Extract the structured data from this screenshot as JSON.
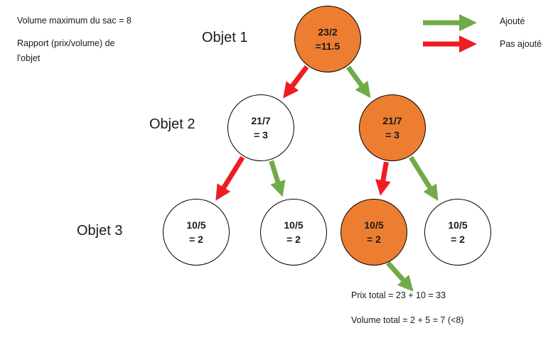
{
  "colors": {
    "added": "#71ab48",
    "not_added": "#ee1c24",
    "selected_fill": "#ed7d31",
    "unselected_fill": "#ffffff",
    "stroke": "#000000"
  },
  "info": {
    "capacity": "Volume maximum du sac = 8",
    "ratio_line1": "Rapport (prix/volume) de",
    "ratio_line2": "l'objet"
  },
  "legend": {
    "added": "Ajouté",
    "not_added": "Pas ajouté"
  },
  "levels": {
    "obj1": "Objet 1",
    "obj2": "Objet 2",
    "obj3": "Objet 3"
  },
  "nodes": {
    "root": {
      "line1": "23/2",
      "line2": "=11.5",
      "selected": true
    },
    "l2_left": {
      "line1": "21/7",
      "line2": "= 3",
      "selected": false
    },
    "l2_right": {
      "line1": "21/7",
      "line2": "= 3",
      "selected": true
    },
    "l3_a": {
      "line1": "10/5",
      "line2": "= 2",
      "selected": false
    },
    "l3_b": {
      "line1": "10/5",
      "line2": "= 2",
      "selected": false
    },
    "l3_c": {
      "line1": "10/5",
      "line2": "= 2",
      "selected": true
    },
    "l3_d": {
      "line1": "10/5",
      "line2": "= 2",
      "selected": false
    }
  },
  "result": {
    "price": "Prix total = 23 + 10 = 33",
    "volume": "Volume total = 2 + 5 = 7 (<8)"
  },
  "edges": [
    {
      "from": "root",
      "to": "l2_left",
      "kind": "not_added"
    },
    {
      "from": "root",
      "to": "l2_right",
      "kind": "added"
    },
    {
      "from": "l2_left",
      "to": "l3_a",
      "kind": "not_added"
    },
    {
      "from": "l2_left",
      "to": "l3_b",
      "kind": "added"
    },
    {
      "from": "l2_right",
      "to": "l3_c",
      "kind": "not_added"
    },
    {
      "from": "l2_right",
      "to": "l3_d",
      "kind": "added"
    },
    {
      "from": "l3_c",
      "to": "result",
      "kind": "added"
    }
  ]
}
